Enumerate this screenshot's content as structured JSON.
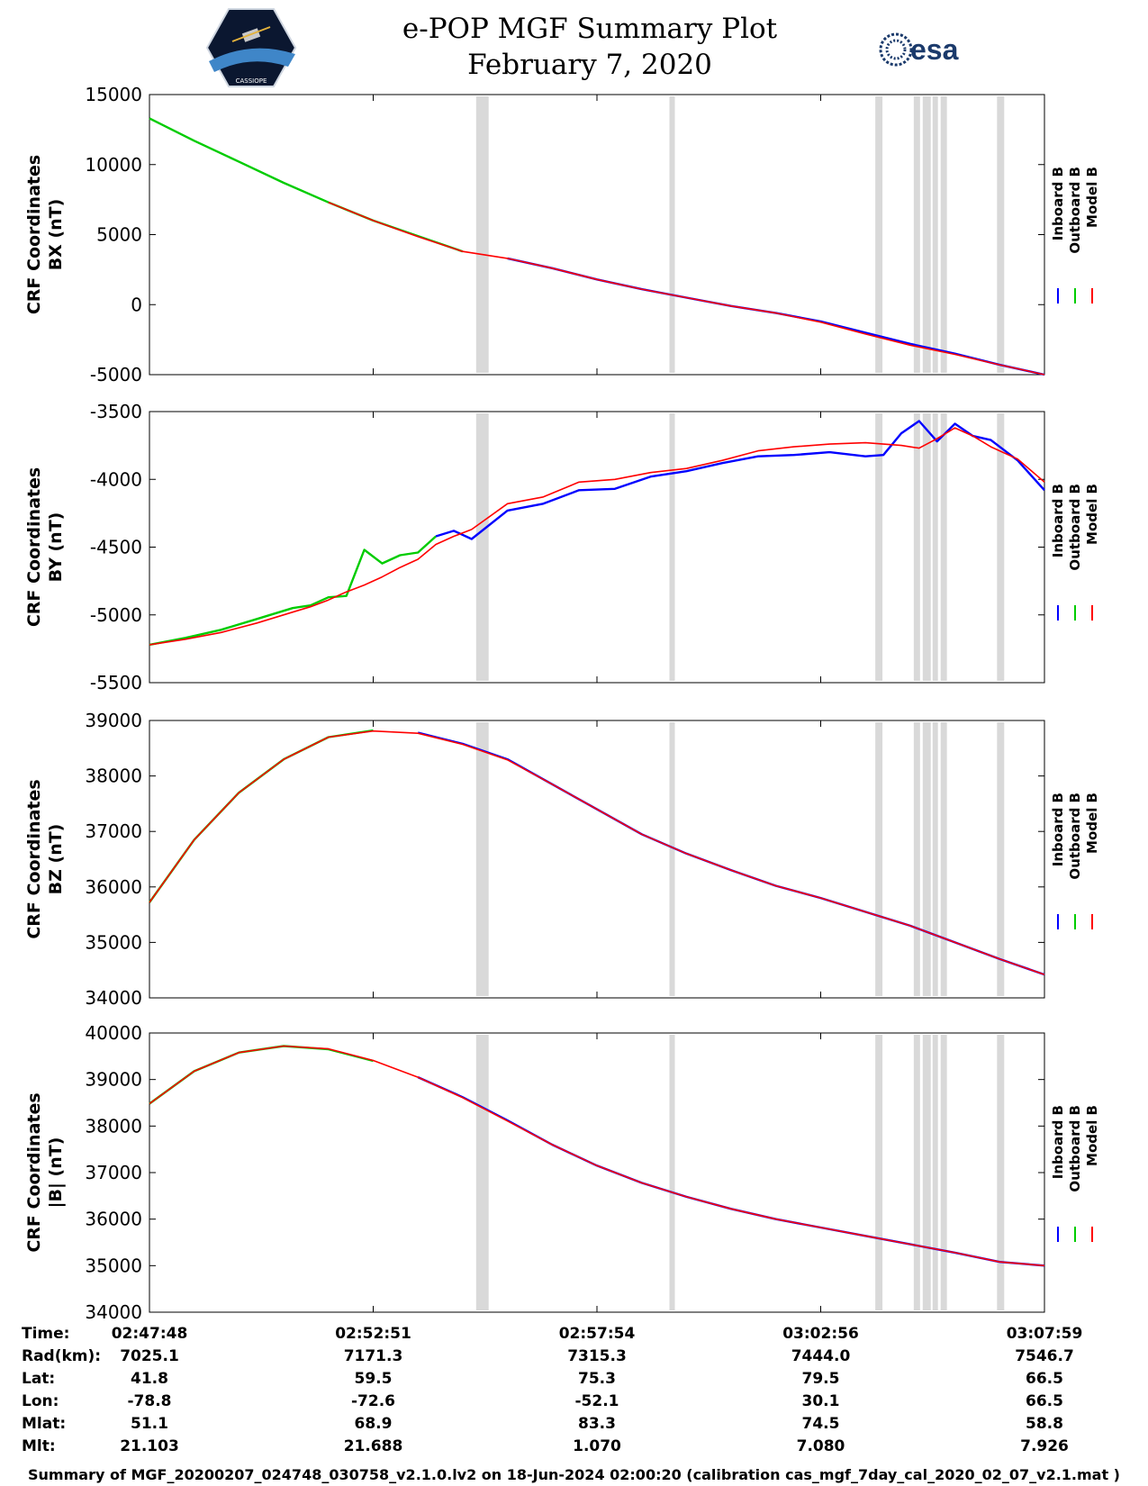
{
  "header": {
    "title_line1": "e-POP MGF Summary Plot",
    "title_line2": "February 7, 2020",
    "logo_left_text": "CASSIOPE",
    "logo_right_text": "esa"
  },
  "legend": {
    "items": [
      {
        "name": "Inboard B",
        "color": "#0000ff"
      },
      {
        "name": "Outboard B",
        "color": "#00cc00"
      },
      {
        "name": "Model B",
        "color": "#ff0000"
      }
    ]
  },
  "chart_data": [
    {
      "type": "line",
      "ylabel_line1": "CRF Coordinates",
      "ylabel_line2": "BX (nT)",
      "ylim": [
        -5000,
        15000
      ],
      "yticks": [
        15000,
        10000,
        5000,
        0,
        -5000
      ],
      "x": [
        0,
        0.05,
        0.1,
        0.15,
        0.2,
        0.25,
        0.3,
        0.35,
        0.4,
        0.45,
        0.5,
        0.55,
        0.6,
        0.65,
        0.7,
        0.75,
        0.8,
        0.85,
        0.9,
        0.95,
        1.0
      ],
      "series": [
        {
          "name": "Inboard B",
          "color": "#0000ff",
          "range": [
            0.36,
            1.0
          ],
          "values": [
            13300,
            11700,
            10200,
            8700,
            7300,
            6000,
            4900,
            3800,
            3300,
            2600,
            1800,
            1100,
            500,
            -100,
            -600,
            -1200,
            -2000,
            -2800,
            -3500,
            -4300,
            -5000
          ]
        },
        {
          "name": "Outboard B",
          "color": "#00cc00",
          "range": [
            0.0,
            0.36
          ],
          "values": [
            13300,
            11700,
            10200,
            8700,
            7300,
            6000,
            4900,
            3800,
            3300,
            2600,
            1800,
            1100,
            500,
            -100,
            -600,
            -1200,
            -2000,
            -2800,
            -3500,
            -4300,
            -5000
          ]
        },
        {
          "name": "Model B",
          "color": "#ff0000",
          "range": [
            0.2,
            1.0
          ],
          "values": [
            13300,
            11700,
            10200,
            8700,
            7300,
            6000,
            4850,
            3800,
            3300,
            2600,
            1800,
            1100,
            500,
            -100,
            -600,
            -1250,
            -2100,
            -2900,
            -3550,
            -4300,
            -5000
          ]
        }
      ]
    },
    {
      "type": "line",
      "ylabel_line1": "CRF Coordinates",
      "ylabel_line2": "BY (nT)",
      "ylim": [
        -5500,
        -3500
      ],
      "yticks": [
        -3500,
        -4000,
        -4500,
        -5000,
        -5500
      ],
      "x": [
        0,
        0.04,
        0.08,
        0.12,
        0.16,
        0.18,
        0.2,
        0.22,
        0.24,
        0.26,
        0.28,
        0.3,
        0.32,
        0.34,
        0.36,
        0.4,
        0.44,
        0.48,
        0.52,
        0.56,
        0.6,
        0.64,
        0.68,
        0.72,
        0.76,
        0.8,
        0.82,
        0.84,
        0.86,
        0.88,
        0.9,
        0.92,
        0.94,
        0.97,
        1.0
      ],
      "series": [
        {
          "name": "Inboard B",
          "color": "#0000ff",
          "range": [
            0.32,
            1.0
          ],
          "values": [
            -5220,
            -5170,
            -5110,
            -5030,
            -4950,
            -4930,
            -4870,
            -4860,
            -4600,
            -4620,
            -4560,
            -4540,
            -4420,
            -4380,
            -4440,
            -4230,
            -4180,
            -4080,
            -4070,
            -3980,
            -3940,
            -3880,
            -3830,
            -3820,
            -3800,
            -3830,
            -3820,
            -3660,
            -3570,
            -3720,
            -3590,
            -3680,
            -3710,
            -3860,
            -4080
          ]
        },
        {
          "name": "Outboard B",
          "color": "#00cc00",
          "range": [
            0.0,
            0.32
          ],
          "values": [
            -5220,
            -5170,
            -5110,
            -5030,
            -4950,
            -4930,
            -4870,
            -4860,
            -4520,
            -4620,
            -4560,
            -4540,
            -4420,
            -4380,
            -4440,
            -4230,
            -4180,
            -4080,
            -4070,
            -3980,
            -3940,
            -3880,
            -3830,
            -3820,
            -3800,
            -3830,
            -3820,
            -3660,
            -3570,
            -3720,
            -3590,
            -3680,
            -3710,
            -3860,
            -4080
          ]
        },
        {
          "name": "Model B",
          "color": "#ff0000",
          "range": [
            0.0,
            1.0
          ],
          "values": [
            -5220,
            -5180,
            -5130,
            -5060,
            -4980,
            -4940,
            -4890,
            -4830,
            -4780,
            -4720,
            -4650,
            -4590,
            -4480,
            -4420,
            -4370,
            -4180,
            -4130,
            -4020,
            -4000,
            -3950,
            -3920,
            -3860,
            -3790,
            -3760,
            -3740,
            -3730,
            -3740,
            -3750,
            -3770,
            -3700,
            -3620,
            -3680,
            -3760,
            -3850,
            -4020
          ]
        }
      ]
    },
    {
      "type": "line",
      "ylabel_line1": "CRF Coordinates",
      "ylabel_line2": "BZ (nT)",
      "ylim": [
        34000,
        39000
      ],
      "yticks": [
        39000,
        38000,
        37000,
        36000,
        35000,
        34000
      ],
      "x": [
        0,
        0.05,
        0.1,
        0.15,
        0.2,
        0.25,
        0.3,
        0.35,
        0.4,
        0.45,
        0.5,
        0.55,
        0.6,
        0.65,
        0.7,
        0.75,
        0.8,
        0.85,
        0.9,
        0.95,
        1.0
      ],
      "series": [
        {
          "name": "Inboard B",
          "color": "#0000ff",
          "range": [
            0.28,
            1.0
          ],
          "values": [
            35720,
            36850,
            37700,
            38300,
            38700,
            38820,
            38780,
            38580,
            38300,
            37850,
            37400,
            36950,
            36600,
            36300,
            36020,
            35800,
            35550,
            35300,
            35000,
            34700,
            34420
          ]
        },
        {
          "name": "Outboard B",
          "color": "#00cc00",
          "range": [
            0.0,
            0.28
          ],
          "values": [
            35720,
            36850,
            37700,
            38300,
            38700,
            38820,
            38780,
            38580,
            38300,
            37850,
            37400,
            36950,
            36600,
            36300,
            36020,
            35800,
            35550,
            35300,
            35000,
            34700,
            34420
          ]
        },
        {
          "name": "Model B",
          "color": "#ff0000",
          "range": [
            0.0,
            1.0
          ],
          "values": [
            35720,
            36850,
            37700,
            38300,
            38700,
            38810,
            38770,
            38570,
            38290,
            37850,
            37400,
            36950,
            36600,
            36300,
            36020,
            35800,
            35550,
            35300,
            35000,
            34700,
            34420
          ]
        }
      ]
    },
    {
      "type": "line",
      "ylabel_line1": "CRF Coordinates",
      "ylabel_line2": "|B| (nT)",
      "ylim": [
        34000,
        40000
      ],
      "yticks": [
        40000,
        39000,
        38000,
        37000,
        36000,
        35000,
        34000
      ],
      "x": [
        0,
        0.05,
        0.1,
        0.15,
        0.2,
        0.25,
        0.3,
        0.35,
        0.4,
        0.45,
        0.5,
        0.55,
        0.6,
        0.65,
        0.7,
        0.75,
        0.8,
        0.85,
        0.9,
        0.95,
        1.0
      ],
      "series": [
        {
          "name": "Inboard B",
          "color": "#0000ff",
          "range": [
            0.28,
            1.0
          ],
          "values": [
            38480,
            39180,
            39580,
            39720,
            39650,
            39400,
            39050,
            38620,
            38120,
            37600,
            37150,
            36780,
            36480,
            36220,
            36000,
            35820,
            35640,
            35460,
            35280,
            35080,
            35000
          ]
        },
        {
          "name": "Outboard B",
          "color": "#00cc00",
          "range": [
            0.0,
            0.28
          ],
          "values": [
            38480,
            39180,
            39580,
            39720,
            39650,
            39400,
            39050,
            38620,
            38120,
            37600,
            37150,
            36780,
            36480,
            36220,
            36000,
            35820,
            35640,
            35460,
            35280,
            35080,
            35000
          ]
        },
        {
          "name": "Model B",
          "color": "#ff0000",
          "range": [
            0.0,
            1.0
          ],
          "values": [
            38480,
            39180,
            39580,
            39720,
            39660,
            39410,
            39050,
            38610,
            38110,
            37600,
            37150,
            36780,
            36480,
            36220,
            36000,
            35820,
            35640,
            35460,
            35280,
            35080,
            35000
          ]
        }
      ]
    }
  ],
  "gray_bands": [
    [
      0.365,
      0.379
    ],
    [
      0.581,
      0.587
    ],
    [
      0.811,
      0.819
    ],
    [
      0.854,
      0.861
    ],
    [
      0.864,
      0.873
    ],
    [
      0.875,
      0.881
    ],
    [
      0.884,
      0.891
    ],
    [
      0.947,
      0.955
    ]
  ],
  "xaxis": {
    "ticks": [
      "02:47:48",
      "02:52:51",
      "02:57:54",
      "03:02:56",
      "03:07:59"
    ]
  },
  "ephemeris": {
    "rows": [
      {
        "label": "Time:",
        "values": [
          "02:47:48",
          "02:52:51",
          "02:57:54",
          "03:02:56",
          "03:07:59"
        ]
      },
      {
        "label": "Rad(km):",
        "values": [
          "7025.1",
          "7171.3",
          "7315.3",
          "7444.0",
          "7546.7"
        ]
      },
      {
        "label": "Lat:",
        "values": [
          "41.8",
          "59.5",
          "75.3",
          "79.5",
          "66.5"
        ]
      },
      {
        "label": "Lon:",
        "values": [
          "-78.8",
          "-72.6",
          "-52.1",
          "30.1",
          "66.5"
        ]
      },
      {
        "label": "Mlat:",
        "values": [
          "51.1",
          "68.9",
          "83.3",
          "74.5",
          "58.8"
        ]
      },
      {
        "label": "Mlt:",
        "values": [
          "21.103",
          "21.688",
          "1.070",
          "7.080",
          "7.926"
        ]
      }
    ]
  },
  "footer": {
    "text": "Summary of MGF_20200207_024748_030758_v2.1.0.lv2 on 18-Jun-2024 02:00:20 (calibration cas_mgf_7day_cal_2020_02_07_v2.1.mat )"
  }
}
